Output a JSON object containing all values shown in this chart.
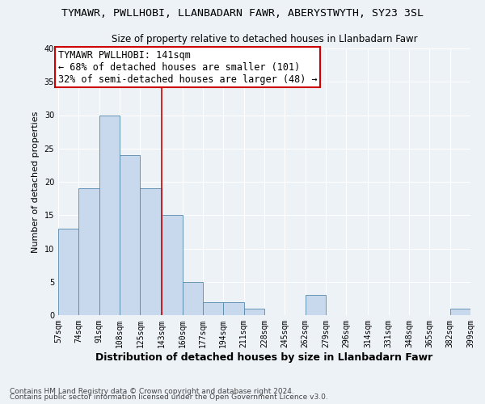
{
  "title": "TYMAWR, PWLLHOBI, LLANBADARN FAWR, ABERYSTWYTH, SY23 3SL",
  "subtitle": "Size of property relative to detached houses in Llanbadarn Fawr",
  "xlabel": "Distribution of detached houses by size in Llanbadarn Fawr",
  "ylabel": "Number of detached properties",
  "bin_edges": [
    57,
    74,
    91,
    108,
    125,
    143,
    160,
    177,
    194,
    211,
    228,
    245,
    262,
    279,
    296,
    314,
    331,
    348,
    365,
    382,
    399
  ],
  "bin_counts": [
    13,
    19,
    30,
    24,
    19,
    15,
    5,
    2,
    2,
    1,
    0,
    0,
    3,
    0,
    0,
    0,
    0,
    0,
    0,
    1
  ],
  "bar_color": "#c8d8ed",
  "bar_edge_color": "#5588aa",
  "vline_x": 143,
  "vline_color": "#cc0000",
  "ylim": [
    0,
    40
  ],
  "annotation_title": "TYMAWR PWLLHOBI: 141sqm",
  "annotation_line1": "← 68% of detached houses are smaller (101)",
  "annotation_line2": "32% of semi-detached houses are larger (48) →",
  "annotation_box_color": "#ffffff",
  "annotation_border_color": "#cc0000",
  "footnote1": "Contains HM Land Registry data © Crown copyright and database right 2024.",
  "footnote2": "Contains public sector information licensed under the Open Government Licence v3.0.",
  "x_tick_labels": [
    "57sqm",
    "74sqm",
    "91sqm",
    "108sqm",
    "125sqm",
    "143sqm",
    "160sqm",
    "177sqm",
    "194sqm",
    "211sqm",
    "228sqm",
    "245sqm",
    "262sqm",
    "279sqm",
    "296sqm",
    "314sqm",
    "331sqm",
    "348sqm",
    "365sqm",
    "382sqm",
    "399sqm"
  ],
  "background_color": "#edf2f7",
  "grid_color": "#ffffff",
  "title_fontsize": 9.5,
  "subtitle_fontsize": 8.5,
  "ylabel_fontsize": 8,
  "xlabel_fontsize": 9,
  "tick_fontsize": 7,
  "annot_fontsize": 8.5,
  "footnote_fontsize": 6.5
}
